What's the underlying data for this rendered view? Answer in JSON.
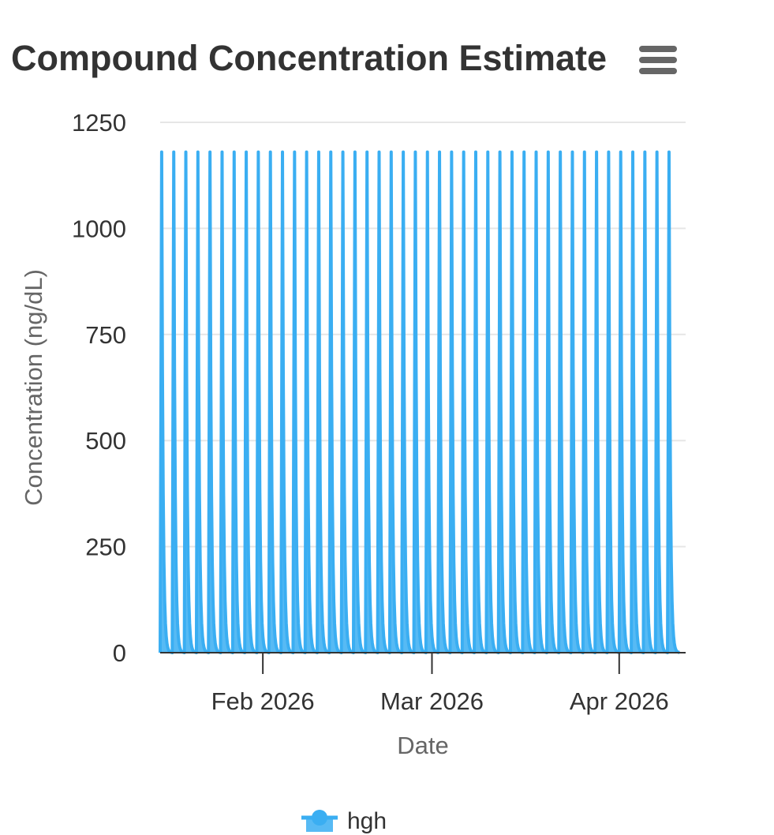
{
  "menu_icon": "hamburger-menu-icon",
  "chart_data": {
    "type": "area",
    "title": "Compound Concentration Estimate",
    "xlabel": "Date",
    "ylabel": "Concentration (ng/dL)",
    "ylim": [
      0,
      1250
    ],
    "yticks": [
      0,
      250,
      500,
      750,
      1000,
      1250
    ],
    "xticks": [
      {
        "date": "2026-02-01",
        "label": "Feb 2026"
      },
      {
        "date": "2026-03-01",
        "label": "Mar 2026"
      },
      {
        "date": "2026-04-01",
        "label": "Apr 2026"
      }
    ],
    "xlim": [
      "2026-01-15",
      "2026-04-12"
    ],
    "grid": true,
    "legend_position": "bottom",
    "series": [
      {
        "name": "hgh",
        "color": "#3aaef2",
        "dose_dates": [
          "2026-01-15",
          "2026-01-17",
          "2026-01-19",
          "2026-01-21",
          "2026-01-23",
          "2026-01-25",
          "2026-01-27",
          "2026-01-29",
          "2026-01-31",
          "2026-02-02",
          "2026-02-04",
          "2026-02-06",
          "2026-02-08",
          "2026-02-10",
          "2026-02-12",
          "2026-02-14",
          "2026-02-16",
          "2026-02-18",
          "2026-02-20",
          "2026-02-22",
          "2026-02-24",
          "2026-02-26",
          "2026-02-28",
          "2026-03-02",
          "2026-03-04",
          "2026-03-06",
          "2026-03-08",
          "2026-03-10",
          "2026-03-12",
          "2026-03-14",
          "2026-03-16",
          "2026-03-18",
          "2026-03-20",
          "2026-03-22",
          "2026-03-24",
          "2026-03-26",
          "2026-03-28",
          "2026-03-30",
          "2026-04-01",
          "2026-04-03",
          "2026-04-05",
          "2026-04-07",
          "2026-04-09"
        ],
        "peak_value": 1180,
        "trough_value": 0
      }
    ]
  }
}
